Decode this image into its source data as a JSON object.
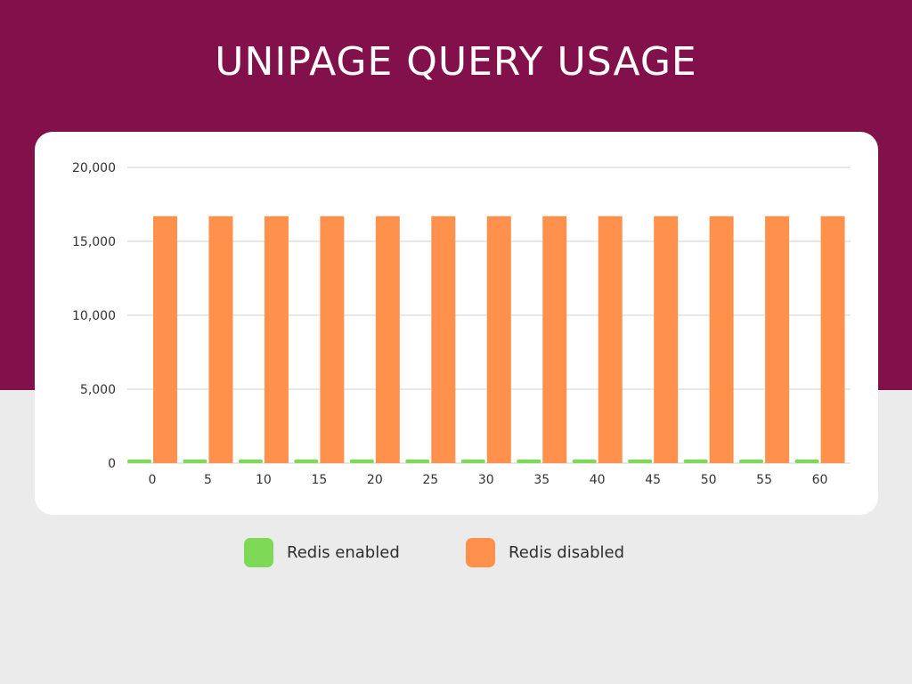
{
  "title": "UNIPAGE QUERY USAGE",
  "colors": {
    "header_band": "#82104a",
    "background": "#ebebeb",
    "card": "#ffffff",
    "redis_enabled": "#7ed957",
    "redis_disabled": "#ff914d",
    "gridline": "#d0d0d0"
  },
  "chart_data": {
    "type": "bar",
    "title": "UNIPAGE QUERY USAGE",
    "xlabel": "",
    "ylabel": "",
    "categories": [
      "0",
      "5",
      "10",
      "15",
      "20",
      "25",
      "30",
      "35",
      "40",
      "45",
      "50",
      "55",
      "60"
    ],
    "series": [
      {
        "name": "Redis enabled",
        "color": "#7ed957",
        "values": [
          250,
          250,
          250,
          250,
          250,
          250,
          250,
          250,
          250,
          250,
          250,
          250,
          250
        ]
      },
      {
        "name": "Redis disabled",
        "color": "#ff914d",
        "values": [
          16700,
          16700,
          16700,
          16700,
          16700,
          16700,
          16700,
          16700,
          16700,
          16700,
          16700,
          16700,
          16700
        ]
      }
    ],
    "ylim": [
      0,
      20000
    ],
    "yticks": [
      0,
      5000,
      10000,
      15000,
      20000
    ],
    "ytick_labels": [
      "0",
      "5,000",
      "10,000",
      "15,000",
      "20,000"
    ],
    "grid": true,
    "legend_position": "bottom-center"
  },
  "legend": {
    "items": [
      {
        "label": "Redis enabled",
        "color": "#7ed957"
      },
      {
        "label": "Redis disabled",
        "color": "#ff914d"
      }
    ]
  }
}
